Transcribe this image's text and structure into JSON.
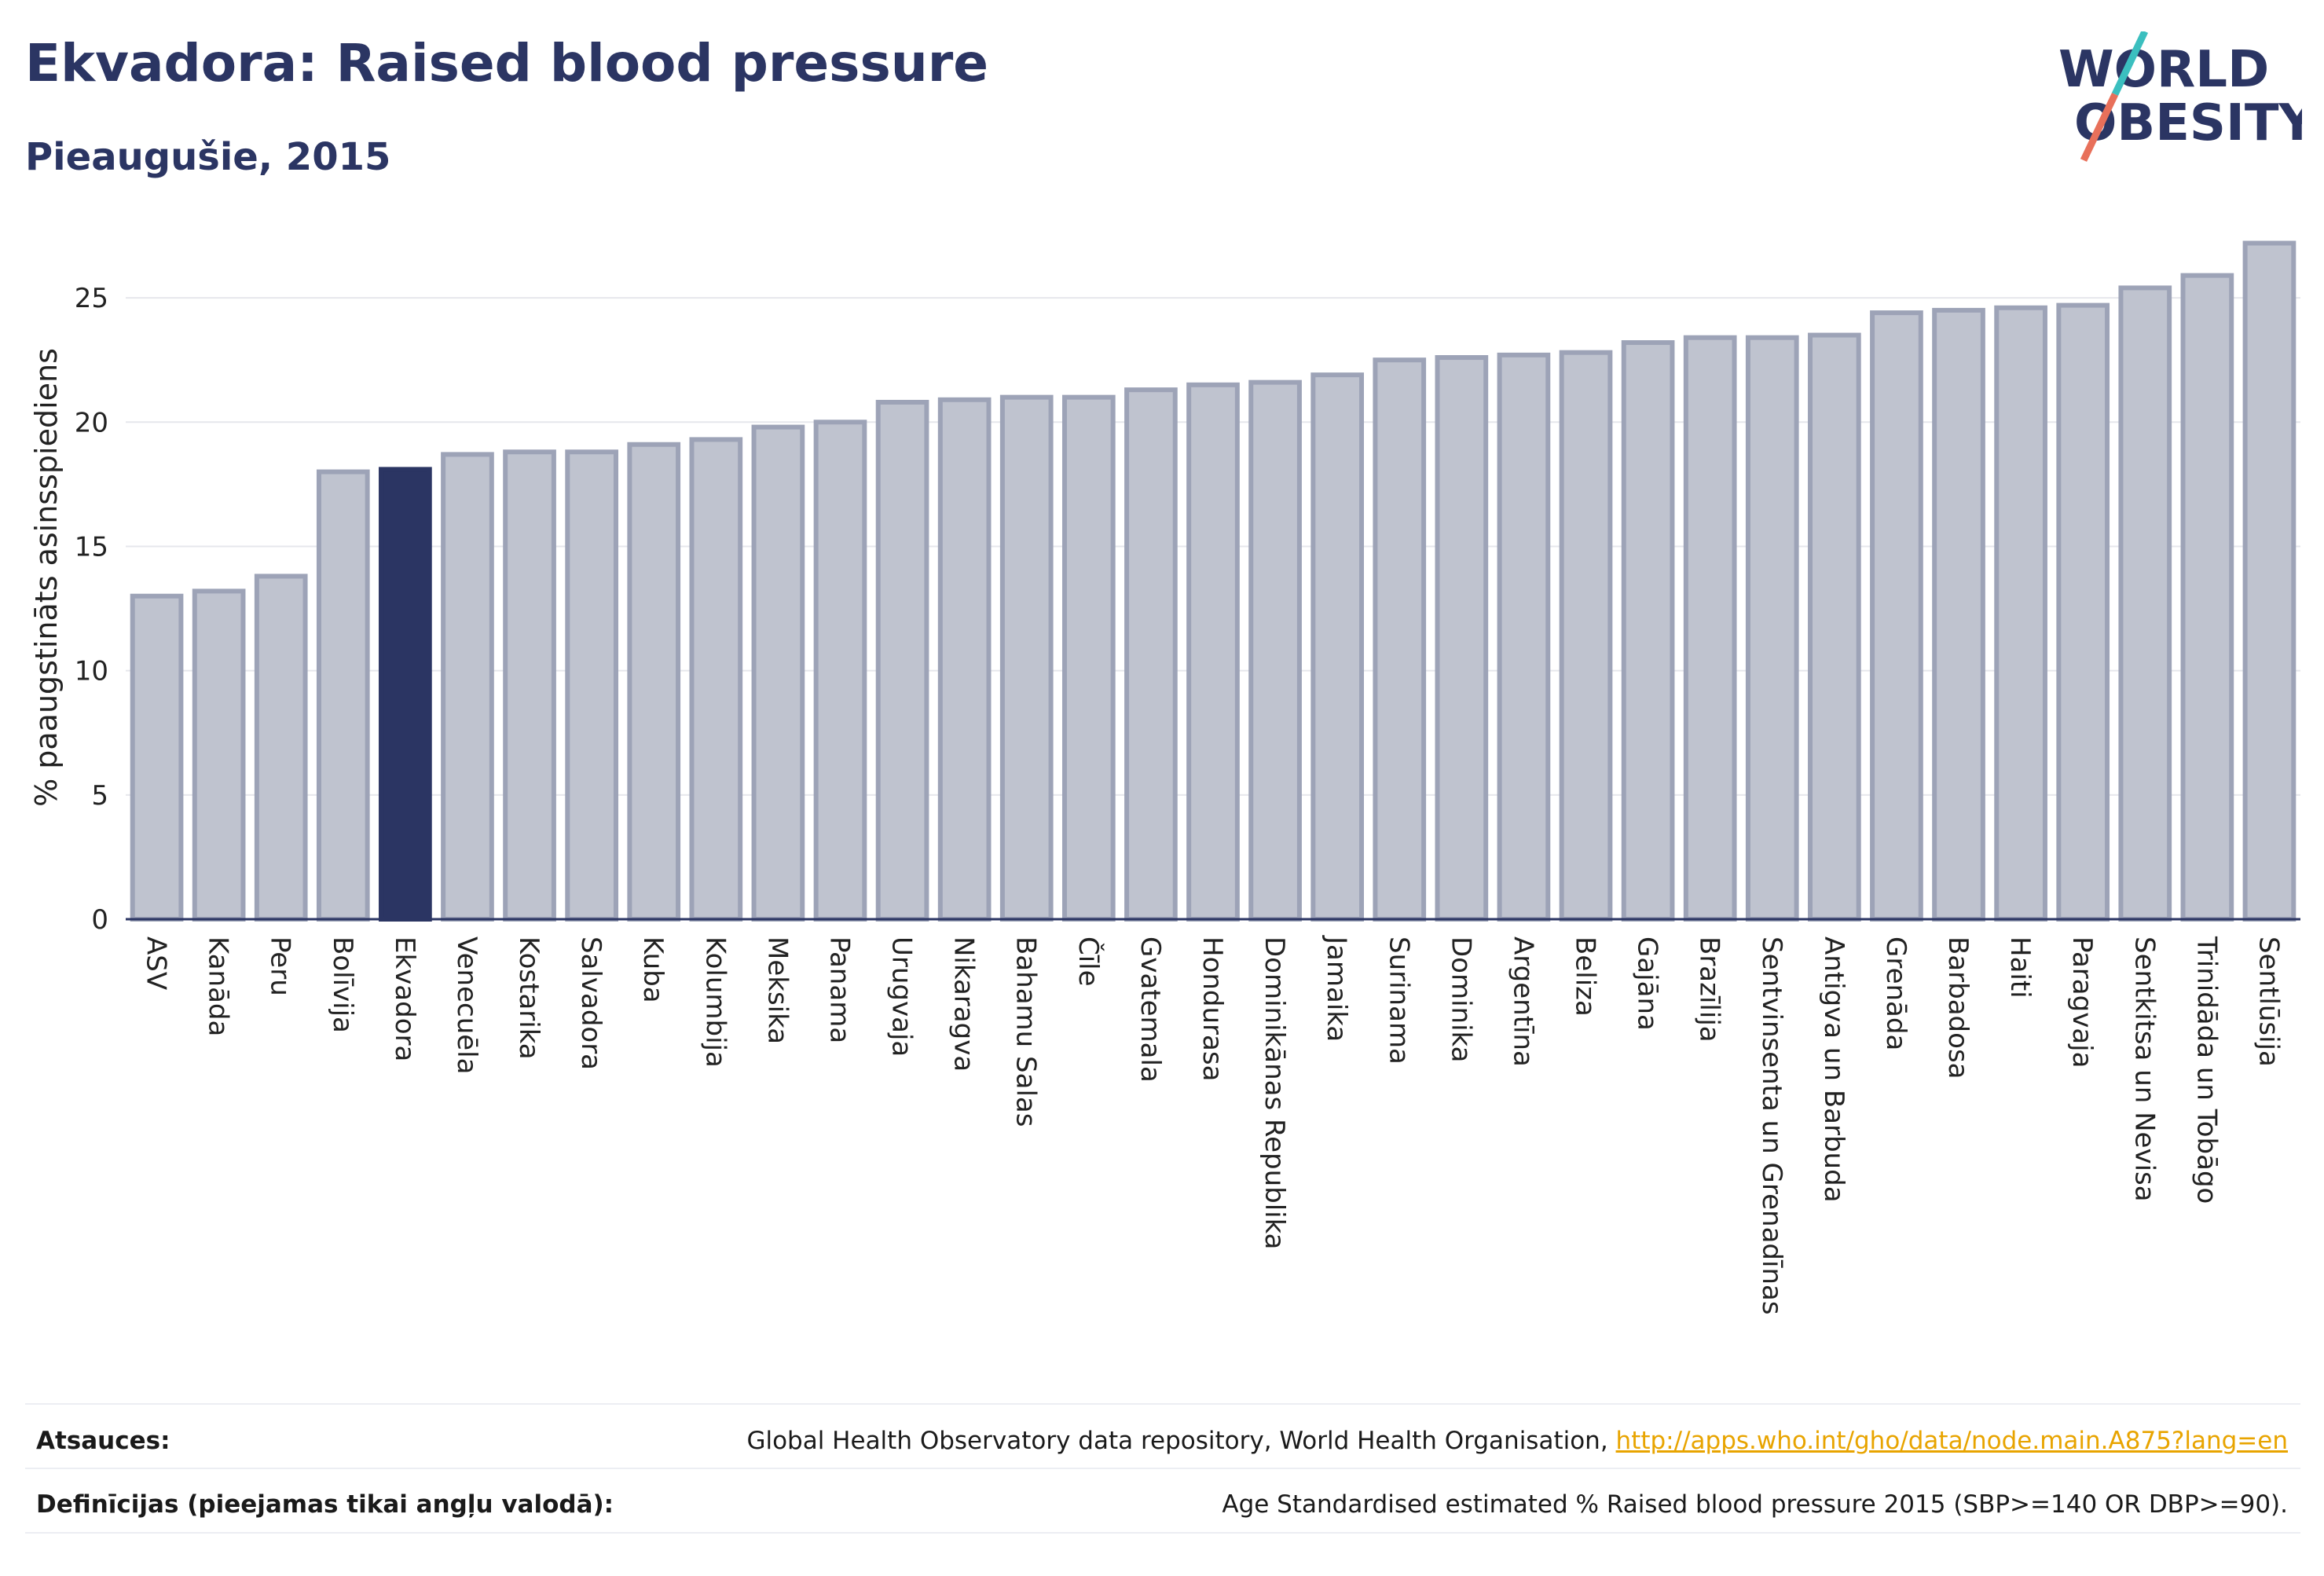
{
  "header": {
    "title": "Ekvadora: Raised blood pressure",
    "subtitle": "Pieaugušie, 2015"
  },
  "logo": {
    "line1": "WORLD",
    "line2": "OBESITY"
  },
  "colors": {
    "highlight": "#2b3563",
    "bar_fill": "#bfc3cf",
    "bar_stroke": "#9da3b7",
    "logo_teal": "#3bbfbf",
    "logo_coral": "#e8705a"
  },
  "chart_data": {
    "type": "bar",
    "ylabel": "% paaugstināts asinsspiediens",
    "ylim": [
      0,
      27.5
    ],
    "yticks": [
      0,
      5,
      10,
      15,
      20,
      25
    ],
    "grid": true,
    "highlight": "Ekvadora",
    "categories": [
      "ASV",
      "Kanāda",
      "Peru",
      "Bolīvija",
      "Ekvadora",
      "Venecuēla",
      "Kostarika",
      "Salvadora",
      "Kuba",
      "Kolumbija",
      "Meksika",
      "Panama",
      "Urugvaja",
      "Nikaragva",
      "Bahamu Salas",
      "Čīle",
      "Gvatemala",
      "Hondurasa",
      "Dominikānas Republika",
      "Jamaika",
      "Surinama",
      "Dominika",
      "Argentīna",
      "Beliza",
      "Gajāna",
      "Brazīlija",
      "Sentvinsenta un Grenadīnas",
      "Antigva un Barbuda",
      "Grenāda",
      "Barbadosa",
      "Haiti",
      "Paragvaja",
      "Sentkitsa un Nevisa",
      "Trinidāda un Tobāgo",
      "Sentlūsija"
    ],
    "values": [
      13.0,
      13.2,
      13.8,
      18.0,
      18.1,
      18.7,
      18.8,
      18.8,
      19.1,
      19.3,
      19.8,
      20.0,
      20.8,
      20.9,
      21.0,
      21.0,
      21.3,
      21.5,
      21.6,
      21.9,
      22.5,
      22.6,
      22.7,
      22.8,
      23.2,
      23.4,
      23.4,
      23.5,
      24.4,
      24.5,
      24.6,
      24.7,
      25.4,
      25.9,
      27.2
    ]
  },
  "footer": {
    "sources_label": "Atsauces:",
    "sources_text": "Global Health Observatory data repository, World Health Organisation, ",
    "sources_link": "http://apps.who.int/gho/data/node.main.A875?lang=en",
    "definitions_label": "Definīcijas (pieejamas tikai angļu valodā):",
    "definitions_text": "Age Standardised estimated % Raised blood pressure 2015 (SBP>=140 OR DBP>=90)."
  }
}
